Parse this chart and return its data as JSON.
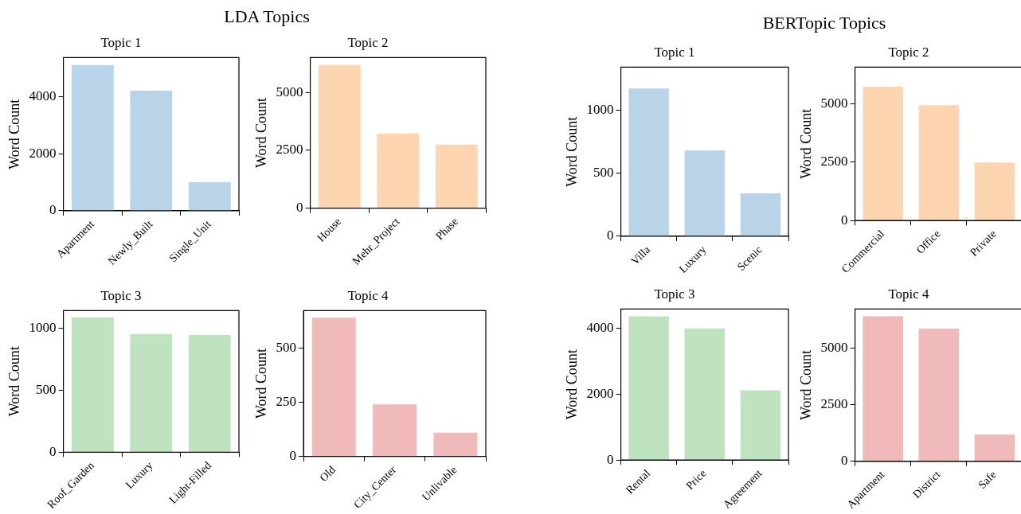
{
  "chart_data": [
    {
      "type": "other",
      "title": "LDA Topics"
    },
    {
      "type": "bar",
      "title": "Topic 1",
      "ylabel": "Word Count",
      "categories": [
        "Apartment",
        "Newly_Built",
        "Single_Unit"
      ],
      "values": [
        5100,
        4200,
        1000
      ],
      "color": "#b9d4e8",
      "ylim": [
        0,
        5360
      ],
      "yticks": [
        0,
        2000,
        4000
      ]
    },
    {
      "type": "bar",
      "title": "Topic 2",
      "ylabel": "Word Count",
      "categories": [
        "House",
        "Mehr_Project",
        "Phase"
      ],
      "values": [
        6200,
        3230,
        2750
      ],
      "color": "#fdd5b1",
      "ylim": [
        0,
        6510
      ],
      "yticks": [
        0,
        2500,
        5000
      ]
    },
    {
      "type": "bar",
      "title": "Topic 3",
      "ylabel": "Word Count",
      "categories": [
        "Roof_Garden",
        "Luxury",
        "Light-Filled"
      ],
      "values": [
        1090,
        956,
        948
      ],
      "color": "#bfe2bf",
      "ylim": [
        0,
        1145
      ],
      "yticks": [
        0,
        500,
        1000
      ]
    },
    {
      "type": "bar",
      "title": "Topic 4",
      "ylabel": "Word Count",
      "categories": [
        "Old",
        "City_Center",
        "Unlivable"
      ],
      "values": [
        640,
        240,
        110
      ],
      "color": "#f0babb",
      "ylim": [
        0,
        672
      ],
      "yticks": [
        0,
        250,
        500
      ]
    },
    {
      "type": "other",
      "title": "BERTopic Topics"
    },
    {
      "type": "bar",
      "title": "Topic 1",
      "ylabel": "Word Count",
      "categories": [
        "Villa",
        "Luxury",
        "Scenic"
      ],
      "values": [
        1170,
        680,
        340
      ],
      "color": "#b9d4e8",
      "ylim": [
        0,
        1340
      ],
      "yticks": [
        0,
        500,
        1000
      ]
    },
    {
      "type": "bar",
      "title": "Topic 2",
      "ylabel": "Word Count",
      "categories": [
        "Commercial",
        "Office",
        "Private"
      ],
      "values": [
        5720,
        4930,
        2480
      ],
      "color": "#fdd5b1",
      "ylim": [
        0,
        6560
      ],
      "yticks": [
        0,
        2500,
        5000
      ]
    },
    {
      "type": "bar",
      "title": "Topic 3",
      "ylabel": "Word Count",
      "categories": [
        "Rental",
        "Price",
        "Agreement"
      ],
      "values": [
        4370,
        4000,
        2120
      ],
      "color": "#bfe2bf",
      "ylim": [
        0,
        4590
      ],
      "yticks": [
        0,
        2000,
        4000
      ]
    },
    {
      "type": "bar",
      "title": "Topic 4",
      "ylabel": "Word Count",
      "categories": [
        "Apartment",
        "District",
        "Safe"
      ],
      "values": [
        6400,
        5860,
        1180
      ],
      "color": "#f0babb",
      "ylim": [
        0,
        6720
      ],
      "yticks": [
        0,
        2500,
        5000
      ]
    }
  ]
}
